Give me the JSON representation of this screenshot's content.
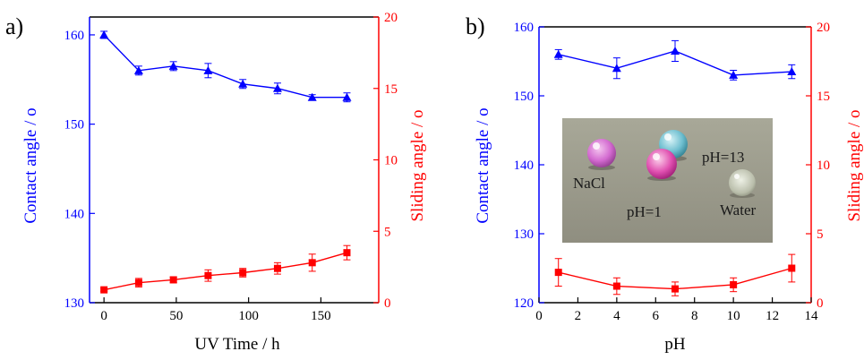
{
  "colors": {
    "left_axis": "#0000ff",
    "right_axis": "#ff0000",
    "frame": "#000000"
  },
  "chart_data": [
    {
      "panel": "a)",
      "type": "line",
      "xlabel": "UV Time / h",
      "ylabel_left": "Contact angle / o",
      "ylabel_right": "Sliding angle / o",
      "xlim": [
        -10,
        190
      ],
      "ylim_left": [
        130,
        162
      ],
      "ylim_right": [
        0,
        20
      ],
      "xticks": [
        0,
        50,
        100,
        150
      ],
      "yticks_left": [
        130,
        140,
        150,
        160
      ],
      "yticks_right": [
        0,
        5,
        10,
        15,
        20
      ],
      "series": [
        {
          "axis": "left",
          "marker": "triangle",
          "color": "#0000ff",
          "x": [
            0,
            24,
            48,
            72,
            96,
            120,
            144,
            168
          ],
          "y": [
            160.0,
            156.0,
            156.5,
            156.0,
            154.5,
            154.0,
            153.0,
            153.0
          ],
          "err": [
            0.4,
            0.5,
            0.5,
            0.8,
            0.5,
            0.6,
            0.3,
            0.5
          ]
        },
        {
          "axis": "right",
          "marker": "square",
          "color": "#ff0000",
          "x": [
            0,
            24,
            48,
            72,
            96,
            120,
            144,
            168
          ],
          "y": [
            0.9,
            1.4,
            1.6,
            1.9,
            2.1,
            2.4,
            2.8,
            3.5
          ],
          "err": [
            0.1,
            0.3,
            0.2,
            0.4,
            0.3,
            0.4,
            0.6,
            0.5
          ]
        }
      ]
    },
    {
      "panel": "b)",
      "type": "line",
      "xlabel": "pH",
      "ylabel_left": "Contact angle / o",
      "ylabel_right": "Sliding angle / o",
      "xlim": [
        0,
        14
      ],
      "ylim_left": [
        120,
        160
      ],
      "ylim_right": [
        0,
        20
      ],
      "xticks": [
        0,
        2,
        4,
        6,
        8,
        10,
        12,
        14
      ],
      "yticks_left": [
        120,
        130,
        140,
        150,
        160
      ],
      "yticks_right": [
        0,
        5,
        10,
        15,
        20
      ],
      "series": [
        {
          "axis": "left",
          "marker": "triangle",
          "color": "#0000ff",
          "x": [
            1,
            4,
            7,
            10,
            13
          ],
          "y": [
            156.0,
            154.0,
            156.5,
            153.0,
            153.5
          ],
          "err": [
            0.7,
            1.5,
            1.5,
            0.7,
            1.0
          ]
        },
        {
          "axis": "right",
          "marker": "square",
          "color": "#ff0000",
          "x": [
            1,
            4,
            7,
            10,
            13
          ],
          "y": [
            2.2,
            1.2,
            1.0,
            1.3,
            2.5
          ],
          "err": [
            1.0,
            0.6,
            0.5,
            0.5,
            1.0
          ]
        }
      ],
      "inset_labels": [
        "NaCl",
        "pH=1",
        "pH=13",
        "Water"
      ]
    }
  ]
}
